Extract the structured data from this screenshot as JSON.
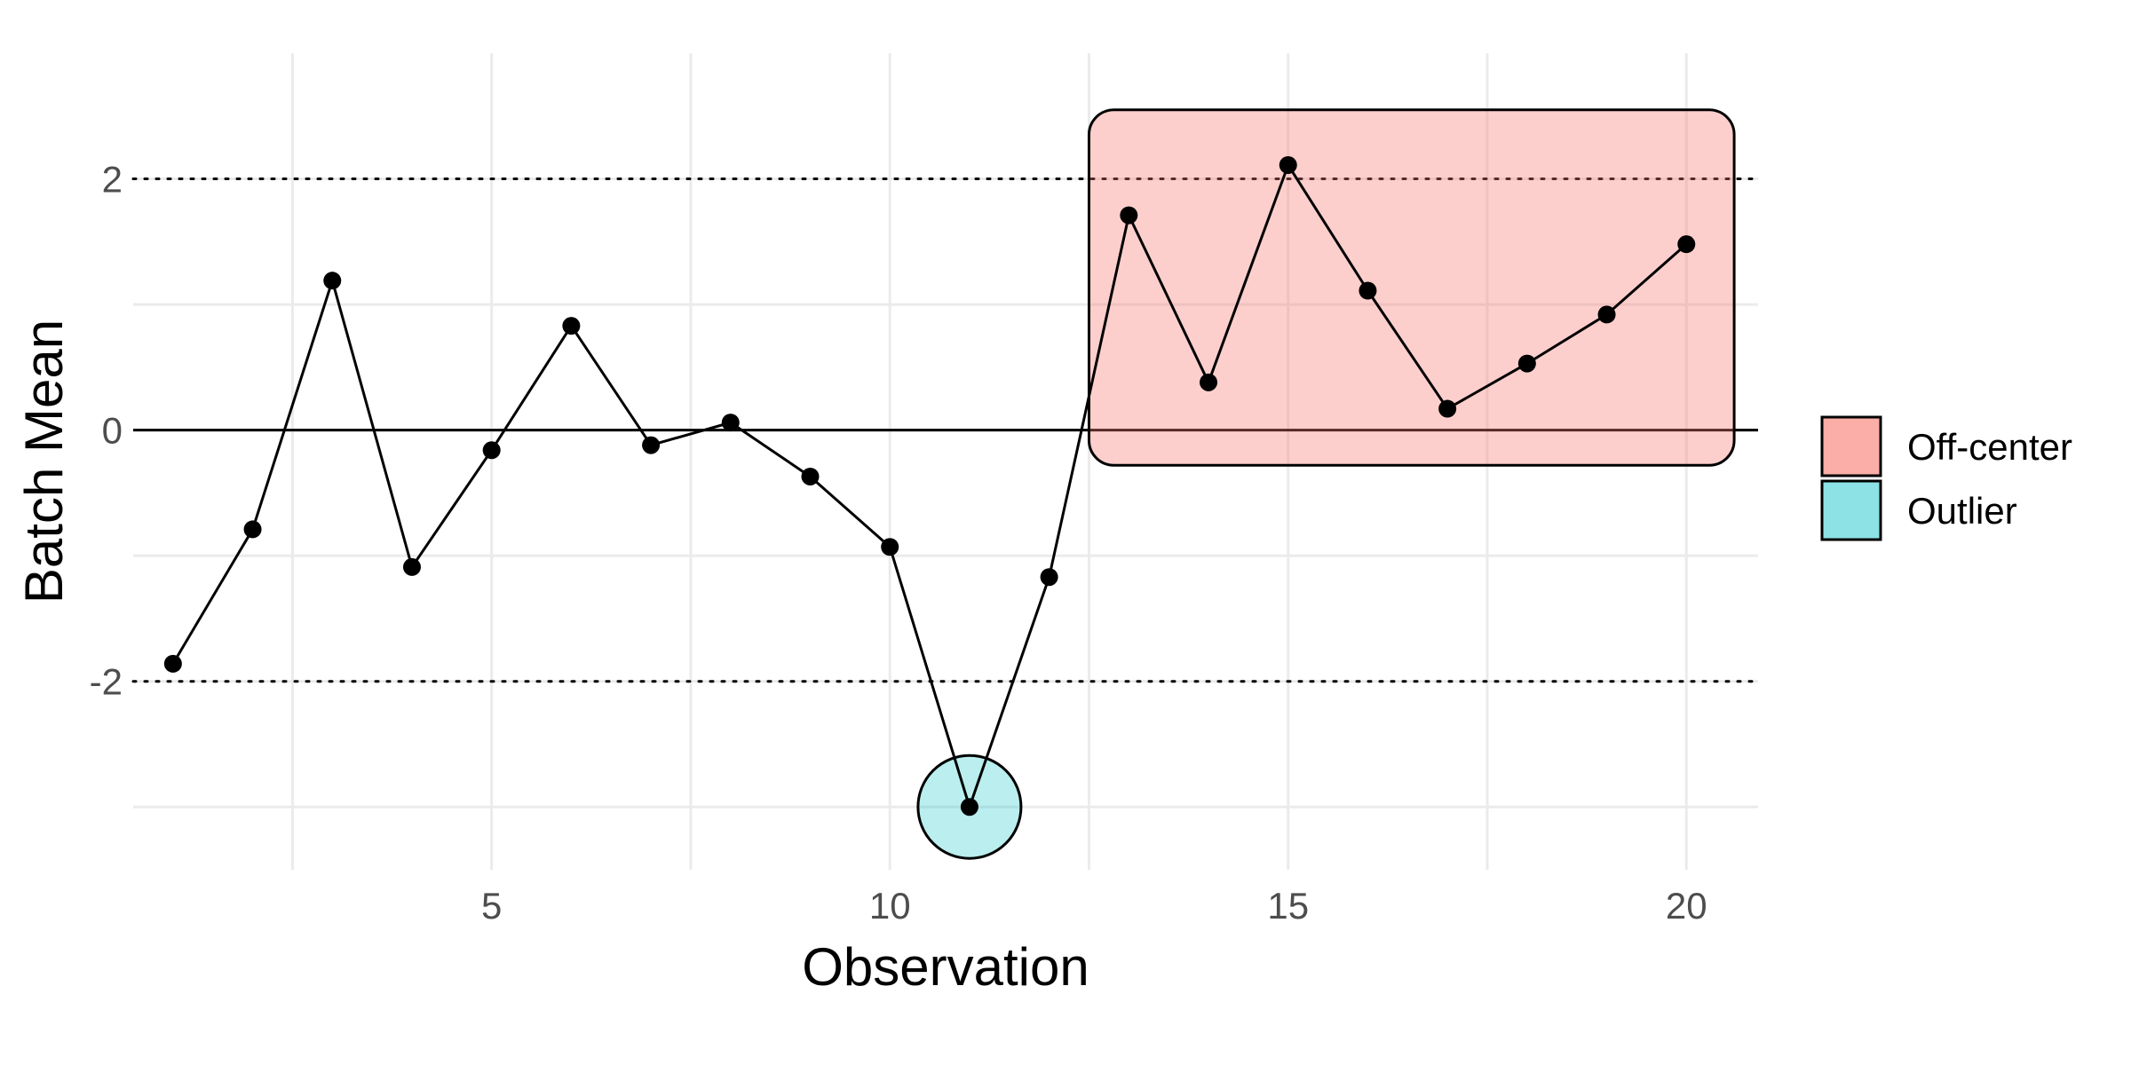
{
  "chart_data": {
    "type": "line",
    "title": "",
    "xlabel": "Observation",
    "ylabel": "Batch Mean",
    "xlim": [
      0.5,
      20.9
    ],
    "ylim": [
      -3.5,
      3.0
    ],
    "x_ticks": [
      5,
      10,
      15,
      20
    ],
    "y_ticks": [
      -2,
      0,
      2
    ],
    "grid": true,
    "series": [
      {
        "x": [
          1,
          2,
          3,
          4,
          5,
          6,
          7,
          8,
          9,
          10,
          11,
          12,
          13,
          14,
          15,
          16,
          17,
          18,
          19,
          20
        ],
        "y": [
          -1.86,
          -0.79,
          1.19,
          -1.09,
          -0.16,
          0.83,
          -0.12,
          0.06,
          -0.37,
          -0.93,
          -3.0,
          -1.17,
          1.71,
          0.38,
          2.11,
          1.11,
          0.17,
          0.53,
          0.92,
          1.48
        ]
      }
    ],
    "reference_lines": [
      {
        "y": 2,
        "style": "dotted"
      },
      {
        "y": -2,
        "style": "dotted"
      },
      {
        "y": 0,
        "style": "solid"
      }
    ],
    "annotations": [
      {
        "kind": "rect",
        "x": [
          12.5,
          20.6
        ],
        "y": [
          -0.28,
          2.55
        ],
        "category": "Off-center"
      },
      {
        "kind": "circle",
        "x": 11,
        "y": -3.0,
        "category": "Outlier"
      }
    ],
    "legend": {
      "position": "right",
      "items": [
        {
          "label": "Off-center",
          "color": "#F8766D"
        },
        {
          "label": "Outlier",
          "color": "#00BFC4"
        }
      ]
    }
  }
}
